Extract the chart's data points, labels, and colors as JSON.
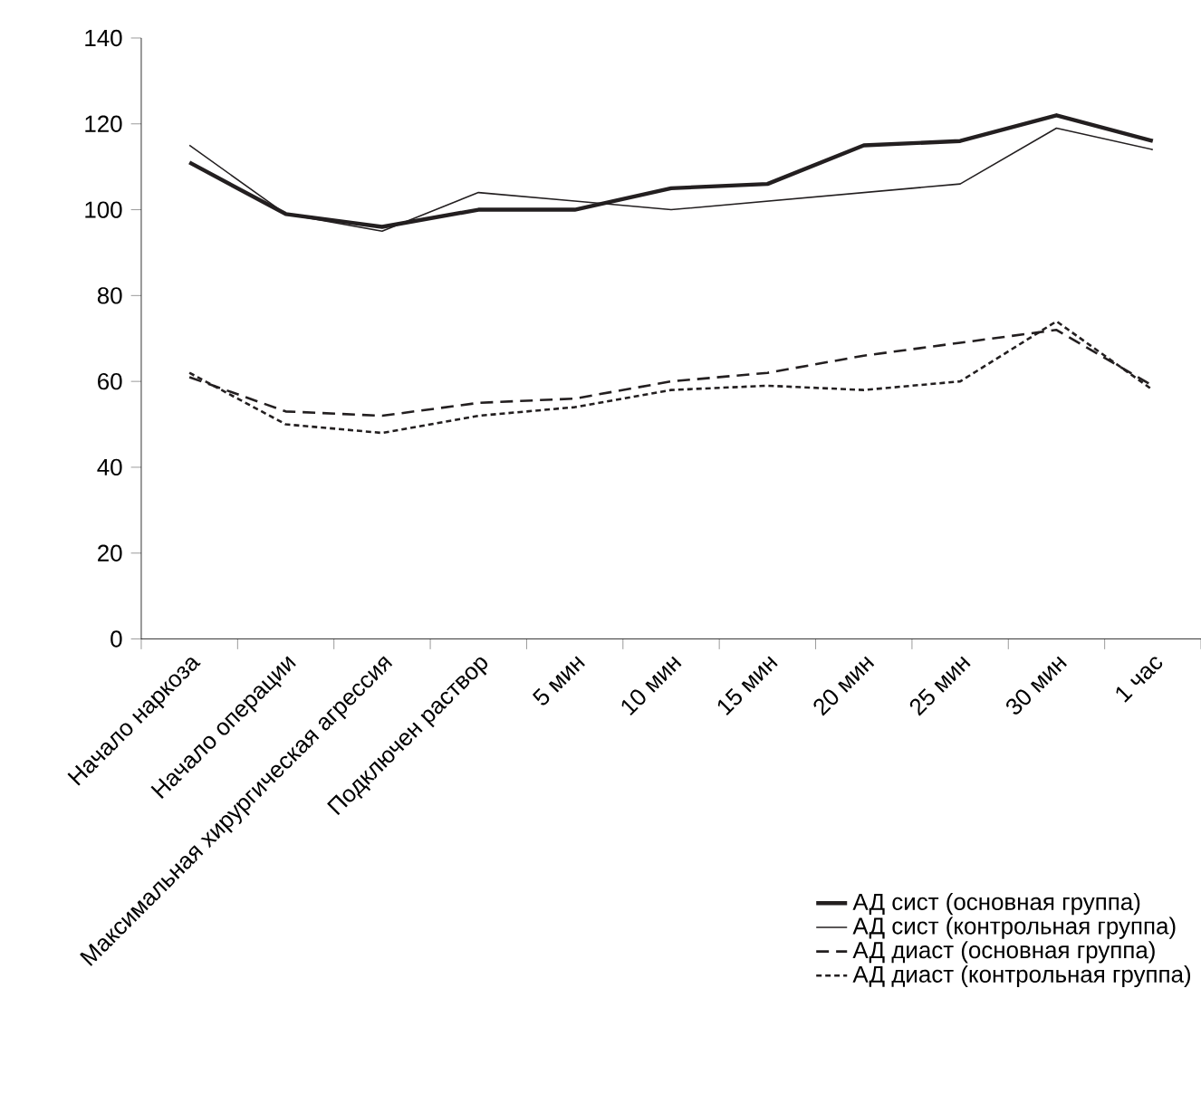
{
  "chart_data": {
    "type": "line",
    "categories": [
      "Начало наркоза",
      "Начало операции",
      "Максимальная хирургическая агрессия",
      "Подключен раствор",
      "5 мин",
      "10 мин",
      "15 мин",
      "20 мин",
      "25 мин",
      "30 мин",
      "1 час"
    ],
    "series": [
      {
        "name": "АД сист (основная группа)",
        "color": "#231f20",
        "line_style": "solid",
        "values": [
          111,
          99,
          96,
          100,
          100,
          105,
          106,
          115,
          116,
          122,
          116
        ]
      },
      {
        "name": "АД сист (контрольная группа)",
        "color": "#231f20",
        "line_style": "solid",
        "values": [
          115,
          99,
          95,
          104,
          102,
          100,
          102,
          104,
          106,
          119,
          114
        ]
      },
      {
        "name": "АД диаст (основная группа)",
        "color": "#231f20",
        "line_style": "dashed",
        "values": [
          61,
          53,
          52,
          55,
          56,
          60,
          62,
          66,
          69,
          72,
          59
        ]
      },
      {
        "name": "АД диаст (контрольная группа)",
        "color": "#231f20",
        "line_style": "dotted",
        "values": [
          62,
          50,
          48,
          52,
          54,
          58,
          59,
          58,
          60,
          74,
          58
        ]
      }
    ],
    "ylim": [
      0,
      140
    ],
    "yticks": [
      0,
      20,
      40,
      60,
      80,
      100,
      120,
      140
    ],
    "grid": false,
    "legend": "bottom right",
    "marker": "none"
  }
}
